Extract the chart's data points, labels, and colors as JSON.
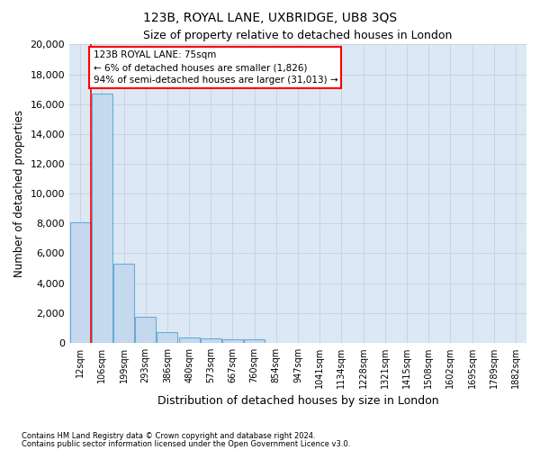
{
  "title": "123B, ROYAL LANE, UXBRIDGE, UB8 3QS",
  "subtitle": "Size of property relative to detached houses in London",
  "xlabel": "Distribution of detached houses by size in London",
  "ylabel": "Number of detached properties",
  "bar_color": "#c5d9ee",
  "bar_edge_color": "#6aaad4",
  "background_color": "#dce9f5",
  "grid_color": "#c8d4e0",
  "annotation_text": "123B ROYAL LANE: 75sqm\n← 6% of detached houses are smaller (1,826)\n94% of semi-detached houses are larger (31,013) →",
  "vline_index": 0.5,
  "categories": [
    "12sqm",
    "106sqm",
    "199sqm",
    "293sqm",
    "386sqm",
    "480sqm",
    "573sqm",
    "667sqm",
    "760sqm",
    "854sqm",
    "947sqm",
    "1041sqm",
    "1134sqm",
    "1228sqm",
    "1321sqm",
    "1415sqm",
    "1508sqm",
    "1602sqm",
    "1695sqm",
    "1789sqm",
    "1882sqm"
  ],
  "bar_heights": [
    8100,
    16700,
    5300,
    1750,
    700,
    380,
    290,
    210,
    200,
    0,
    0,
    0,
    0,
    0,
    0,
    0,
    0,
    0,
    0,
    0,
    0
  ],
  "ylim": [
    0,
    20000
  ],
  "yticks": [
    0,
    2000,
    4000,
    6000,
    8000,
    10000,
    12000,
    14000,
    16000,
    18000,
    20000
  ],
  "footnote1": "Contains HM Land Registry data © Crown copyright and database right 2024.",
  "footnote2": "Contains public sector information licensed under the Open Government Licence v3.0."
}
